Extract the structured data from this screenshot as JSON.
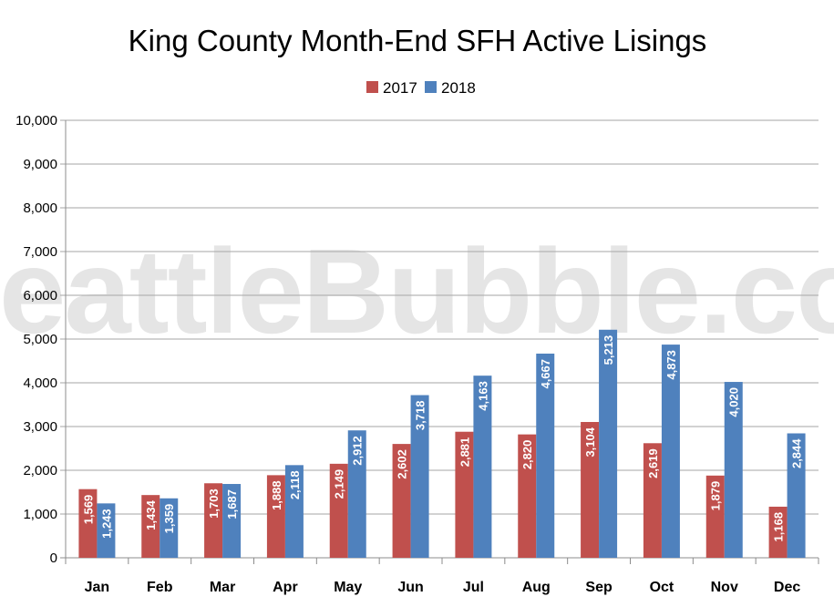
{
  "chart_data": {
    "type": "bar",
    "title": "King County Month-End SFH Active Lisings",
    "watermark": "SeattleBubble.com",
    "categories": [
      "Jan",
      "Feb",
      "Mar",
      "Apr",
      "May",
      "Jun",
      "Jul",
      "Aug",
      "Sep",
      "Oct",
      "Nov",
      "Dec"
    ],
    "series": [
      {
        "name": "2017",
        "color": "#c0504d",
        "values": [
          1569,
          1434,
          1703,
          1888,
          2149,
          2602,
          2881,
          2820,
          3104,
          2619,
          1879,
          1168
        ]
      },
      {
        "name": "2018",
        "color": "#4f81bd",
        "values": [
          1243,
          1359,
          1687,
          2118,
          2912,
          3718,
          4163,
          4667,
          5213,
          4873,
          4020,
          2844
        ]
      }
    ],
    "ylim": [
      0,
      10000
    ],
    "yticks": [
      0,
      1000,
      2000,
      3000,
      4000,
      5000,
      6000,
      7000,
      8000,
      9000,
      10000
    ],
    "ytick_labels": [
      "0",
      "1,000",
      "2,000",
      "3,000",
      "4,000",
      "5,000",
      "6,000",
      "7,000",
      "8,000",
      "9,000",
      "10,000"
    ],
    "grid": true,
    "legend_position": "top-center",
    "data_label_color": "#ffffff"
  }
}
